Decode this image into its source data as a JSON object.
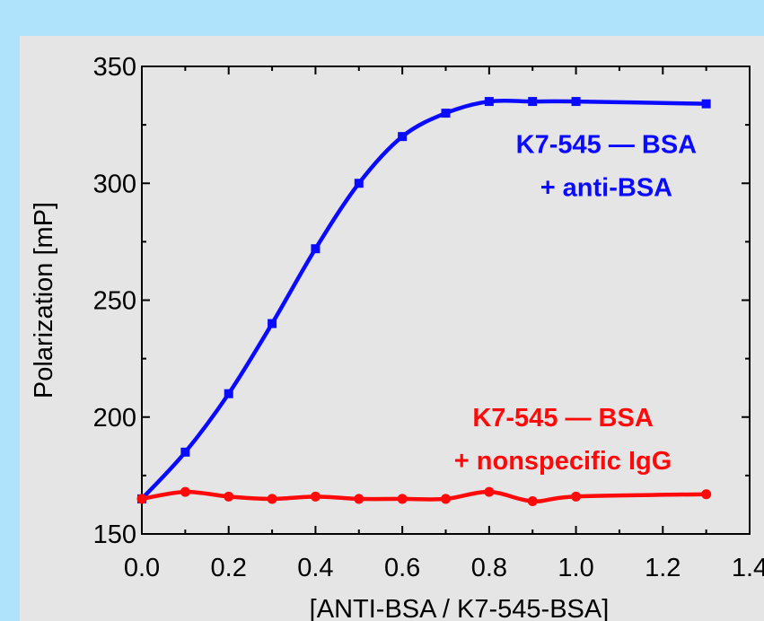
{
  "colors": {
    "outer_background": "#aee3fb",
    "plot_background": "#e5e5e5",
    "series_1": "#0a0aff",
    "series_2": "#ff0a0a"
  },
  "chart_data": {
    "type": "line",
    "title": "",
    "xlabel": "[ANTI-BSA / K7-545-BSA]",
    "ylabel": "Polarization [mP]",
    "xlim": [
      0.0,
      1.4
    ],
    "ylim": [
      150,
      350
    ],
    "x_ticks": [
      "0.0",
      "0.2",
      "0.4",
      "0.6",
      "0.8",
      "1.0",
      "1.2",
      "1.4"
    ],
    "y_ticks": [
      "150",
      "200",
      "250",
      "300",
      "350"
    ],
    "grid": false,
    "legend": "none",
    "series": [
      {
        "color": "#0a0aff",
        "marker": "square",
        "x": [
          0.0,
          0.1,
          0.2,
          0.3,
          0.4,
          0.5,
          0.6,
          0.7,
          0.8,
          0.9,
          1.0,
          1.3
        ],
        "y": [
          165,
          185,
          210,
          240,
          272,
          300,
          320,
          330,
          335,
          335,
          335,
          334
        ]
      },
      {
        "color": "#ff0a0a",
        "marker": "circle",
        "x": [
          0.0,
          0.1,
          0.2,
          0.3,
          0.4,
          0.5,
          0.6,
          0.7,
          0.8,
          0.9,
          1.0,
          1.3
        ],
        "y": [
          165,
          168,
          166,
          165,
          166,
          165,
          165,
          165,
          168,
          164,
          166,
          167
        ]
      }
    ],
    "annotations": [
      {
        "lines": [
          "K7-545 — BSA",
          "+ anti-BSA"
        ],
        "color": "#0a0aff",
        "x": 1.07,
        "y": 313
      },
      {
        "lines": [
          "K7-545 — BSA",
          "+ nonspecific IgG"
        ],
        "color": "#ff0a0a",
        "x": 0.97,
        "y": 196
      }
    ]
  }
}
